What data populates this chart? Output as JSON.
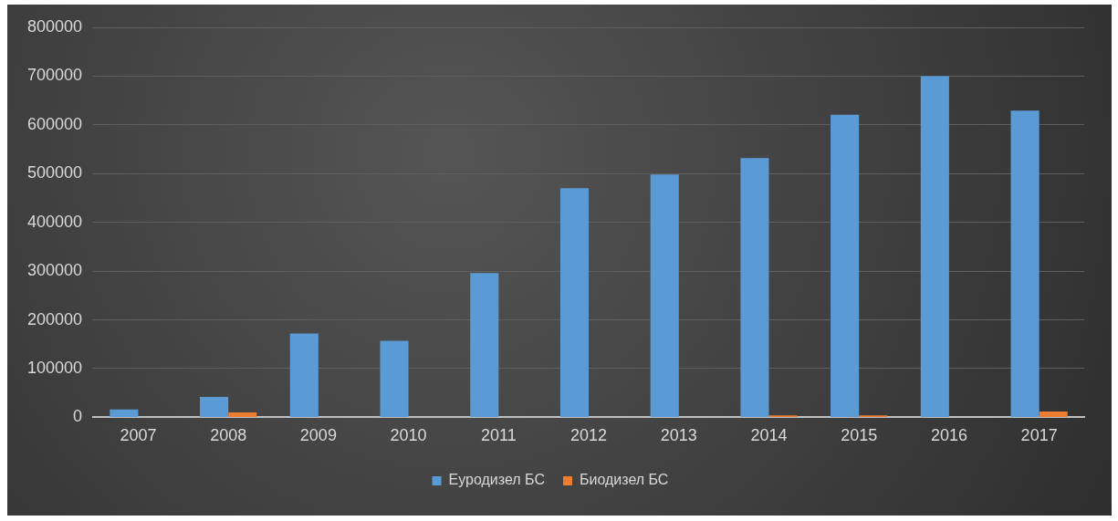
{
  "chart_data": {
    "type": "bar",
    "categories": [
      "2007",
      "2008",
      "2009",
      "2010",
      "2011",
      "2012",
      "2013",
      "2014",
      "2015",
      "2016",
      "2017"
    ],
    "series": [
      {
        "name": "Еуродизел БС",
        "color": "#5b9bd5",
        "values": [
          16000,
          42000,
          172000,
          157000,
          296000,
          470000,
          498000,
          532000,
          621000,
          700000,
          629000
        ]
      },
      {
        "name": "Биодизел БС",
        "color": "#ed7d31",
        "values": [
          0,
          10000,
          null,
          0,
          0,
          null,
          null,
          4000,
          4000,
          null,
          12000
        ]
      }
    ],
    "ylim": [
      0,
      800000
    ],
    "yticks": [
      0,
      100000,
      200000,
      300000,
      400000,
      500000,
      600000,
      700000,
      800000
    ],
    "grid": "y",
    "legend": "bottom"
  }
}
